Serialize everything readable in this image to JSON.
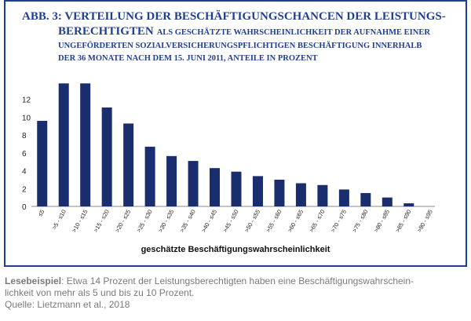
{
  "chart_data": {
    "type": "bar",
    "title_lines": [
      "ABB. 3: VERTEILUNG DER BESCHÄFTIGUNGSCHANCEN DER LEISTUNGS-",
      "BERECHTIGTEN"
    ],
    "subtitle_lines": [
      "ALS GESCHÄTZTE WAHRSCHEINLICHKEIT DER AUFNAHME EINER",
      "UNGEFÖRDERTEN SOZIALVERSICHERUNGSPFLICHTIGEN BESCHÄFTIGUNG INNERHALB",
      "DER 36 MONATE NACH DEM 15. JUNI 2011, ANTEILE IN PROZENT"
    ],
    "x_label": "geschätzte Beschäftigungswahrscheinlichkeit",
    "categories": [
      "≤5",
      ">5 - ≤10",
      ">10 - ≤15",
      ">15 - ≤20",
      ">20 - ≤25",
      ">25 - ≤30",
      ">30 - ≤35",
      ">35 - ≤40",
      ">40 - ≤45",
      ">45 - ≤50",
      ">50 - ≤55",
      ">55 - ≤60",
      ">60 - ≤65",
      ">65 - ≤70",
      ">70 - ≤75",
      ">75 - ≤80",
      ">80 - ≤85",
      ">85 - ≤90",
      ">90 - ≤95"
    ],
    "values": [
      9.6,
      13.8,
      13.8,
      11.1,
      9.3,
      6.7,
      5.65,
      5.1,
      4.3,
      3.9,
      3.4,
      3.0,
      2.6,
      2.4,
      1.9,
      1.5,
      1.0,
      0.35,
      0
    ],
    "color": "#1a2e6e",
    "ylim": [
      0,
      14
    ],
    "yticks": [
      0,
      2,
      4,
      6,
      8,
      10,
      12
    ]
  },
  "footer": {
    "label": "Lesebeispiel",
    "lines": [
      ": Etwa 14 Prozent der Leistungsberechtigten haben eine Beschäftigungswahrschein-",
      "lichkeit von mehr als 5 und bis zu 10 Prozent."
    ],
    "source": "Quelle: Lietzmann et al., 2018"
  }
}
